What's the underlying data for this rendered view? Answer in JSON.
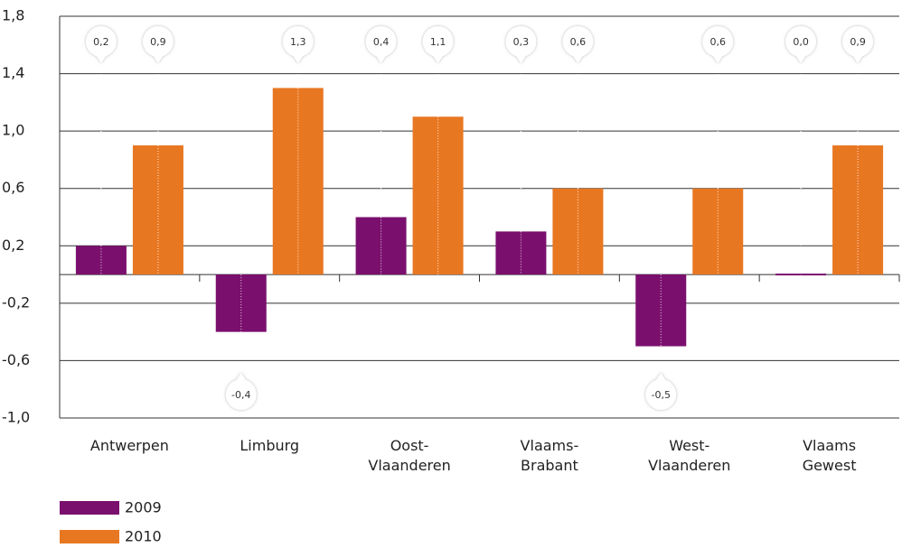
{
  "chart_data": {
    "type": "bar",
    "categories": [
      "Antwerpen",
      "Limburg",
      "Oost-\nVlaanderen",
      "Vlaams-\nBrabant",
      "West-\nVlaanderen",
      "Vlaams\nGewest"
    ],
    "series": [
      {
        "name": "2009",
        "color": "#7b0f6e",
        "values": [
          0.2,
          -0.4,
          0.4,
          0.3,
          -0.5,
          0.0
        ],
        "value_labels": [
          "0,2",
          "-0,4",
          "0,4",
          "0,3",
          "-0,5",
          "0,0"
        ]
      },
      {
        "name": "2010",
        "color": "#e87722",
        "values": [
          0.9,
          1.3,
          1.1,
          0.6,
          0.6,
          0.9
        ],
        "value_labels": [
          "0,9",
          "1,3",
          "1,1",
          "0,6",
          "0,6",
          "0,9"
        ]
      }
    ],
    "ylim": [
      -1.0,
      1.8
    ],
    "yticks": [
      {
        "value": -1.0,
        "label": "-1,0"
      },
      {
        "value": -0.6,
        "label": "-0,6"
      },
      {
        "value": -0.2,
        "label": "-0,2"
      },
      {
        "value": 0.2,
        "label": "0,2"
      },
      {
        "value": 0.6,
        "label": "0,6"
      },
      {
        "value": 1.0,
        "label": "1,0"
      },
      {
        "value": 1.4,
        "label": "1,4"
      },
      {
        "value": 1.8,
        "label": "1,8"
      }
    ],
    "grid": true,
    "legend": "bottom-left"
  }
}
